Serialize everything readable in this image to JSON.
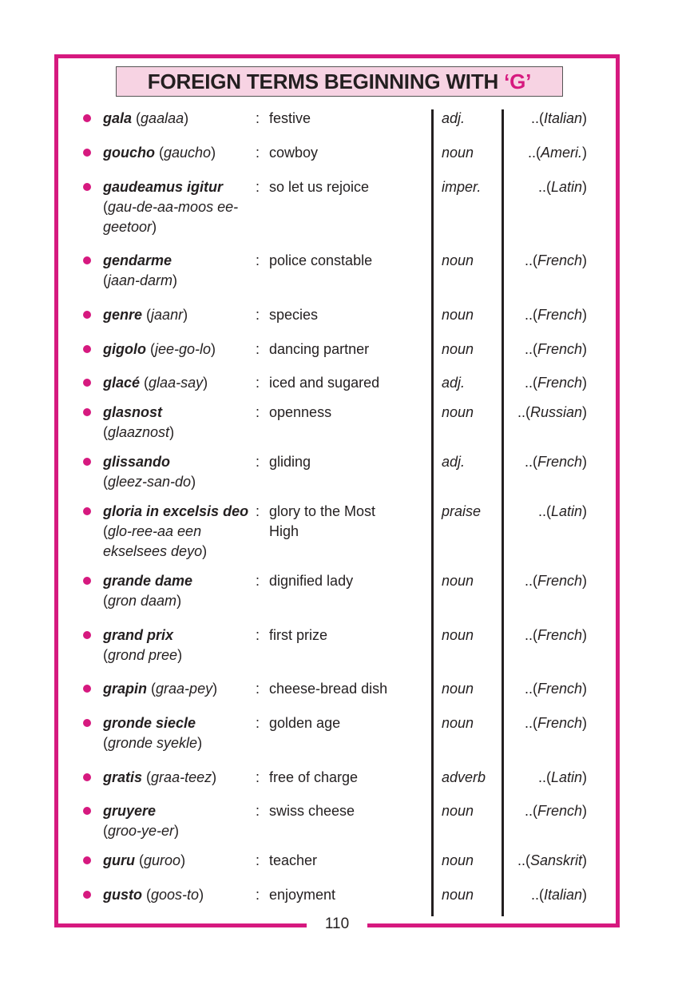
{
  "title": {
    "text": "FOREIGN TERMS BEGINNING WITH ",
    "letter": "‘G’"
  },
  "page_number": "110",
  "colors": {
    "accent": "#d6197f",
    "title_bg": "#f7d3e3",
    "text": "#231f20"
  },
  "entries": [
    {
      "term": "gala",
      "pron": "gaalaa",
      "meaning": "festive",
      "pos": "adj.",
      "origin": "Italian"
    },
    {
      "term": "goucho",
      "pron": "gaucho",
      "meaning": "cowboy",
      "pos": "noun",
      "origin": "Ameri."
    },
    {
      "term": "gaudeamus igitur",
      "pron": "gau-de-aa-moos ee-geetoor",
      "meaning": "so let us rejoice",
      "pos": "imper.",
      "origin": "Latin"
    },
    {
      "term": "gendarme",
      "pron": "jaan-darm",
      "meaning": "police constable",
      "pos": "noun",
      "origin": "French"
    },
    {
      "term": "genre",
      "pron": "jaanr",
      "meaning": "species",
      "pos": "noun",
      "origin": "French"
    },
    {
      "term": "gigolo",
      "pron": "jee-go-lo",
      "meaning": "dancing partner",
      "pos": "noun",
      "origin": "French"
    },
    {
      "term": "glacé",
      "pron": "glaa-say",
      "meaning": "iced and sugared",
      "pos": "adj.",
      "origin": "French"
    },
    {
      "term": "glasnost",
      "pron": "glaaznost",
      "meaning": "openness",
      "pos": "noun",
      "origin": "Russian"
    },
    {
      "term": "glissando",
      "pron": "gleez-san-do",
      "meaning": "gliding",
      "pos": "adj.",
      "origin": "French"
    },
    {
      "term": "gloria in excelsis deo",
      "pron": "glo-ree-aa een ekselsees deyo",
      "meaning": "glory to the Most High",
      "pos": "praise",
      "origin": "Latin"
    },
    {
      "term": "grande dame",
      "pron": "gron daam",
      "meaning": "dignified lady",
      "pos": "noun",
      "origin": "French"
    },
    {
      "term": "grand prix",
      "pron": "grond pree",
      "meaning": "first prize",
      "pos": "noun",
      "origin": "French"
    },
    {
      "term": "grapin",
      "pron": "graa-pey",
      "meaning": "cheese-bread dish",
      "pos": "noun",
      "origin": "French"
    },
    {
      "term": "gronde siecle",
      "pron": "gronde syekle",
      "meaning": "golden age",
      "pos": "noun",
      "origin": "French"
    },
    {
      "term": "gratis",
      "pron": "graa-teez",
      "meaning": "free of charge",
      "pos": "adverb",
      "origin": "Latin"
    },
    {
      "term": "gruyere",
      "pron": "groo-ye-er",
      "meaning": "swiss cheese",
      "pos": "noun",
      "origin": "French"
    },
    {
      "term": "guru",
      "pron": "guroo",
      "meaning": "teacher",
      "pos": "noun",
      "origin": "Sanskrit"
    },
    {
      "term": "gusto",
      "pron": "goos-to",
      "meaning": "enjoyment",
      "pos": "noun",
      "origin": "Italian"
    }
  ]
}
